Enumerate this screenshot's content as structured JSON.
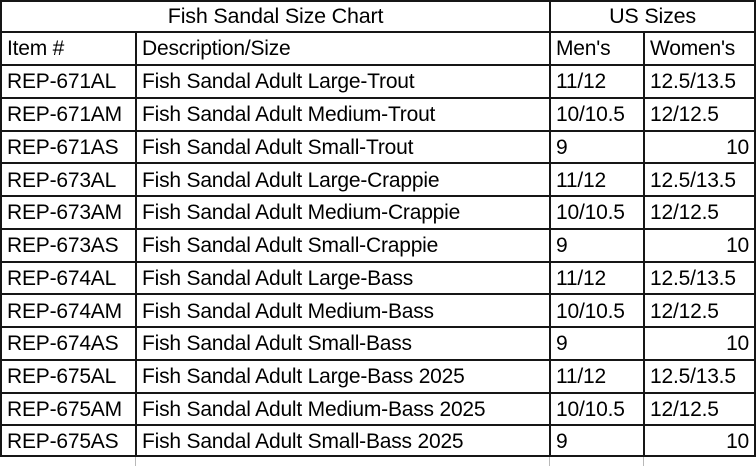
{
  "table": {
    "title": "Fish Sandal Size Chart",
    "sizes_group_header": "US Sizes",
    "columns": [
      "Item #",
      "Description/Size",
      "Men's",
      "Women's"
    ],
    "rows": [
      {
        "item": "REP-671AL",
        "description": "Fish Sandal Adult Large-Trout",
        "mens": "11/12",
        "womens": "12.5/13.5"
      },
      {
        "item": "REP-671AM",
        "description": "Fish Sandal Adult Medium-Trout",
        "mens": "10/10.5",
        "womens": "12/12.5"
      },
      {
        "item": "REP-671AS",
        "description": "Fish Sandal Adult Small-Trout",
        "mens": "9",
        "womens": "10"
      },
      {
        "item": "REP-673AL",
        "description": "Fish Sandal Adult Large-Crappie",
        "mens": "11/12",
        "womens": "12.5/13.5"
      },
      {
        "item": "REP-673AM",
        "description": "Fish Sandal Adult Medium-Crappie",
        "mens": "10/10.5",
        "womens": "12/12.5"
      },
      {
        "item": "REP-673AS",
        "description": "Fish Sandal Adult Small-Crappie",
        "mens": "9",
        "womens": "10"
      },
      {
        "item": "REP-674AL",
        "description": "Fish Sandal Adult Large-Bass",
        "mens": "11/12",
        "womens": "12.5/13.5"
      },
      {
        "item": "REP-674AM",
        "description": "Fish Sandal Adult Medium-Bass",
        "mens": "10/10.5",
        "womens": "12/12.5"
      },
      {
        "item": "REP-674AS",
        "description": "Fish Sandal Adult Small-Bass",
        "mens": "9",
        "womens": "10"
      },
      {
        "item": "REP-675AL",
        "description": "Fish Sandal Adult Large-Bass 2025",
        "mens": "11/12",
        "womens": "12.5/13.5"
      },
      {
        "item": "REP-675AM",
        "description": "Fish Sandal Adult Medium-Bass 2025",
        "mens": "10/10.5",
        "womens": "12/12.5"
      },
      {
        "item": "REP-675AS",
        "description": "Fish Sandal Adult Small-Bass 2025",
        "mens": "9",
        "womens": "10"
      }
    ]
  },
  "colors": {
    "border": "#161616",
    "text": "#000000",
    "background": "#ffffff",
    "faint_gridline": "#b9b9b9"
  }
}
